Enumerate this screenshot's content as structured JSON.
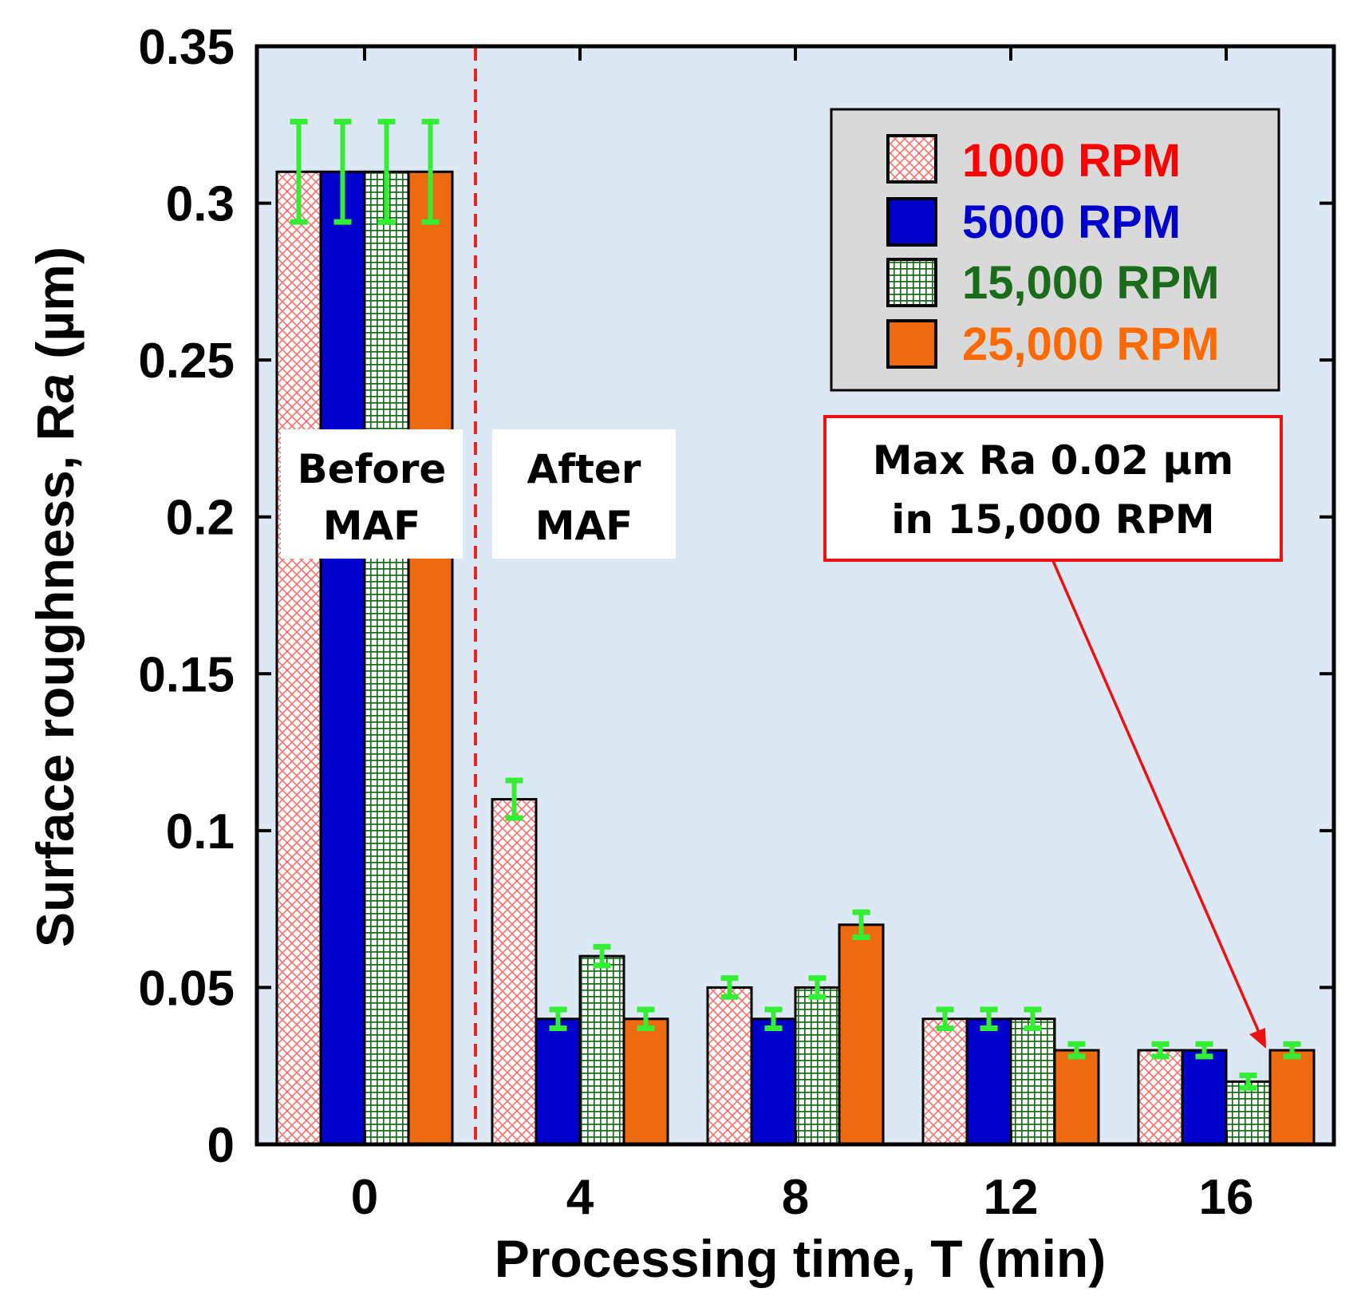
{
  "chart_data": {
    "type": "bar",
    "xlabel": "Processing time, T (min)",
    "ylabel_prefix": "Surface roughness, R",
    "ylabel_italic": "a",
    "ylabel_suffix": " (µm)",
    "ylim": [
      0,
      0.35
    ],
    "yticks": [
      "0",
      "0.05",
      "0.1",
      "0.15",
      "0.2",
      "0.25",
      "0.3",
      "0.35"
    ],
    "ytick_values": [
      0,
      0.05,
      0.1,
      0.15,
      0.2,
      0.25,
      0.3,
      0.35
    ],
    "categories": [
      "0",
      "4",
      "8",
      "12",
      "16"
    ],
    "series": [
      {
        "name": "1000 RPM",
        "pattern": "crosshatch",
        "color": "#ff2a2a",
        "values": [
          0.31,
          0.11,
          0.05,
          0.04,
          0.03
        ],
        "errors": [
          0.016,
          0.006,
          0.003,
          0.003,
          0.002
        ]
      },
      {
        "name": "5000 RPM",
        "pattern": "solid",
        "color": "#0000cc",
        "values": [
          0.31,
          0.04,
          0.04,
          0.04,
          0.03
        ],
        "errors": [
          0.016,
          0.003,
          0.003,
          0.003,
          0.002
        ]
      },
      {
        "name": "15,000 RPM",
        "pattern": "grid",
        "color": "#1a6b1a",
        "values": [
          0.31,
          0.06,
          0.05,
          0.04,
          0.02
        ],
        "errors": [
          0.016,
          0.003,
          0.003,
          0.003,
          0.002
        ]
      },
      {
        "name": "25,000 RPM",
        "pattern": "solid",
        "color": "#ee6a10",
        "values": [
          0.31,
          0.04,
          0.07,
          0.03,
          0.03
        ],
        "errors": [
          0.016,
          0.003,
          0.004,
          0.002,
          0.002
        ]
      }
    ],
    "legend_colors": [
      "#ff0000",
      "#0000cc",
      "#1a6b1a",
      "#ff6a00"
    ],
    "errorbar_color": "#33ee33",
    "plot_background": "#dde8f5",
    "divider_color": "#ee2222",
    "legend_position": "top-right",
    "annotations": {
      "before": [
        "Before",
        "MAF"
      ],
      "after": [
        "After",
        "MAF"
      ],
      "callout": [
        "Max Ra 0.02 µm",
        "in 15,000 RPM"
      ]
    }
  }
}
